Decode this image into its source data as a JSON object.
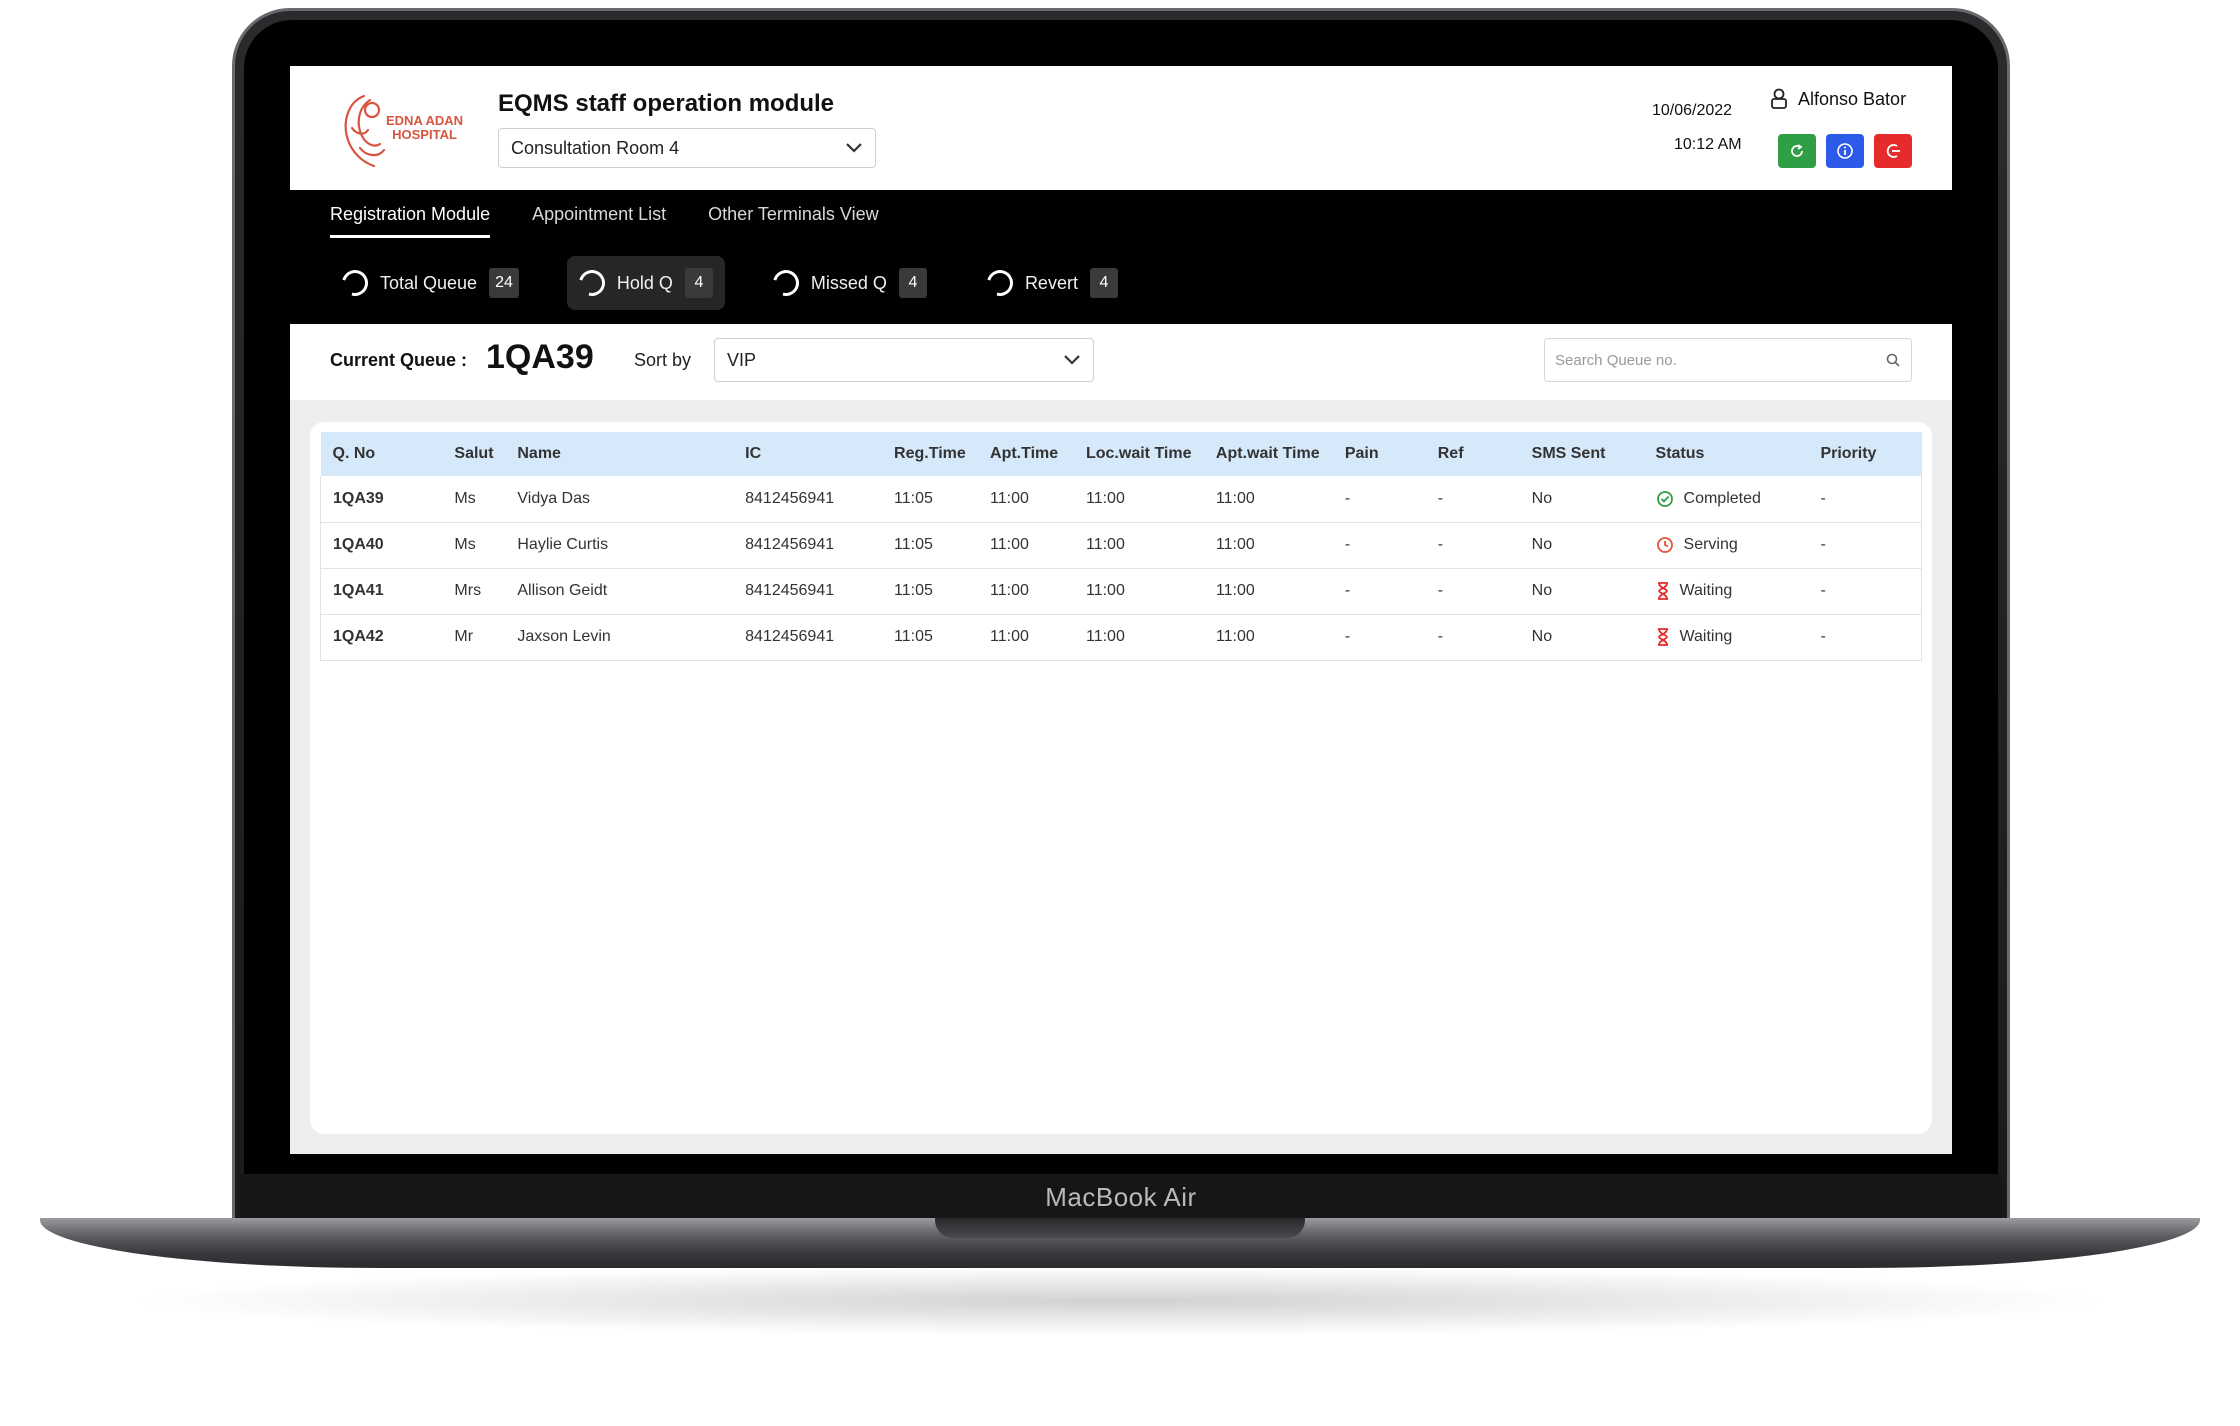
{
  "device": {
    "label": "MacBook Air"
  },
  "logo": {
    "text_line1": "EDNA ADAN",
    "text_line2": "HOSPITAL"
  },
  "header": {
    "title": "EQMS staff operation module",
    "room": "Consultation Room 4",
    "date": "10/06/2022",
    "time": "10:12 AM",
    "user": "Alfonso Bator",
    "buttons": {
      "refresh_color": "#2f9e44",
      "info_color": "#2d5ae8",
      "logout_color": "#e52b2b"
    }
  },
  "tabs": [
    {
      "label": "Registration Module"
    },
    {
      "label": "Appointment List"
    },
    {
      "label": "Other Terminals View"
    }
  ],
  "filters": [
    {
      "label": "Total Queue",
      "count": "24"
    },
    {
      "label": "Hold Q",
      "count": "4"
    },
    {
      "label": "Missed Q",
      "count": "4"
    },
    {
      "label": "Revert",
      "count": "4"
    }
  ],
  "queue_bar": {
    "current_label": "Current Queue :",
    "current_value": "1QA39",
    "sort_label": "Sort by",
    "sort_value": "VIP",
    "search_placeholder": "Search Queue no."
  },
  "table": {
    "headers": [
      "Q. No",
      "Salut",
      "Name",
      "IC",
      "Reg.Time",
      "Apt.Time",
      "Loc.wait Time",
      "Apt.wait Time",
      "Pain",
      "Ref",
      "SMS Sent",
      "Status",
      "Priority"
    ],
    "rows": [
      {
        "qno": "1QA39",
        "salut": "Ms",
        "name": "Vidya Das",
        "ic": "8412456941",
        "reg": "11:05",
        "apt": "11:00",
        "loc_wait": "11:00",
        "apt_wait": "11:00",
        "pain": "-",
        "ref": "-",
        "sms": "No",
        "status": "Completed",
        "status_icon": "check-circle-icon",
        "priority": "-"
      },
      {
        "qno": "1QA40",
        "salut": "Ms",
        "name": "Haylie Curtis",
        "ic": "8412456941",
        "reg": "11:05",
        "apt": "11:00",
        "loc_wait": "11:00",
        "apt_wait": "11:00",
        "pain": "-",
        "ref": "-",
        "sms": "No",
        "status": "Serving",
        "status_icon": "clock-icon",
        "priority": "-"
      },
      {
        "qno": "1QA41",
        "salut": "Mrs",
        "name": "Allison Geidt",
        "ic": "8412456941",
        "reg": "11:05",
        "apt": "11:00",
        "loc_wait": "11:00",
        "apt_wait": "11:00",
        "pain": "-",
        "ref": "-",
        "sms": "No",
        "status": "Waiting",
        "status_icon": "hourglass-icon",
        "priority": "-"
      },
      {
        "qno": "1QA42",
        "salut": "Mr",
        "name": "Jaxson Levin",
        "ic": "8412456941",
        "reg": "11:05",
        "apt": "11:00",
        "loc_wait": "11:00",
        "apt_wait": "11:00",
        "pain": "-",
        "ref": "-",
        "sms": "No",
        "status": "Waiting",
        "status_icon": "hourglass-icon",
        "priority": "-"
      }
    ]
  },
  "colors": {
    "completed": "#2f9e44",
    "serving": "#e5533a",
    "waiting": "#e52b2b",
    "table_header_bg": "#d6e9fb"
  }
}
